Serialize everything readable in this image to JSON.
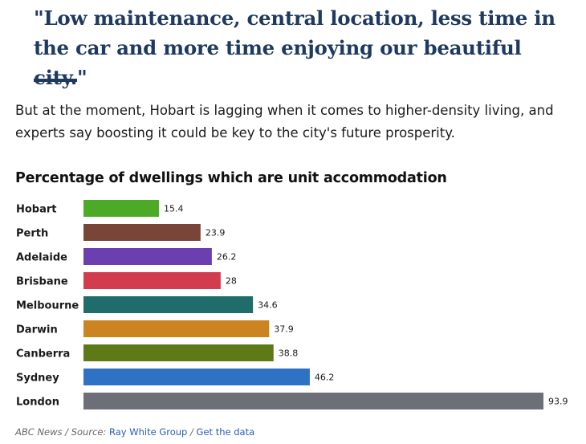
{
  "quote": {
    "text": "\"Low maintenance, central location, less time in the car and more time enjoying our beautiful city.\""
  },
  "paragraph": "But at the moment, Hobart is lagging when it comes to higher-density living, and experts say boosting it could be key to the city's future prosperity.",
  "colors": {
    "quote": "#1f3a5f",
    "link": "#2a5db0"
  },
  "chart_data": {
    "type": "bar",
    "orientation": "horizontal",
    "title": "Percentage of dwellings which are unit accommodation",
    "categories": [
      "Hobart",
      "Perth",
      "Adelaide",
      "Brisbane",
      "Melbourne",
      "Darwin",
      "Canberra",
      "Sydney",
      "London"
    ],
    "values": [
      15.4,
      23.9,
      26.2,
      28,
      34.6,
      37.9,
      38.8,
      46.2,
      93.9
    ],
    "colors": [
      "#4caa26",
      "#7a4539",
      "#6c3fb0",
      "#d23c4e",
      "#1e6d6b",
      "#cc8420",
      "#5e7a16",
      "#2f72c4",
      "#6d6f78"
    ],
    "xlim": [
      0,
      93.9
    ],
    "xlabel": "",
    "ylabel": "",
    "grid": false,
    "legend": "none"
  },
  "footer": {
    "credit": "ABC News",
    "separator": " / ",
    "source_label": "Source: ",
    "source_link": "Ray White Group",
    "data_link": "Get the data"
  }
}
